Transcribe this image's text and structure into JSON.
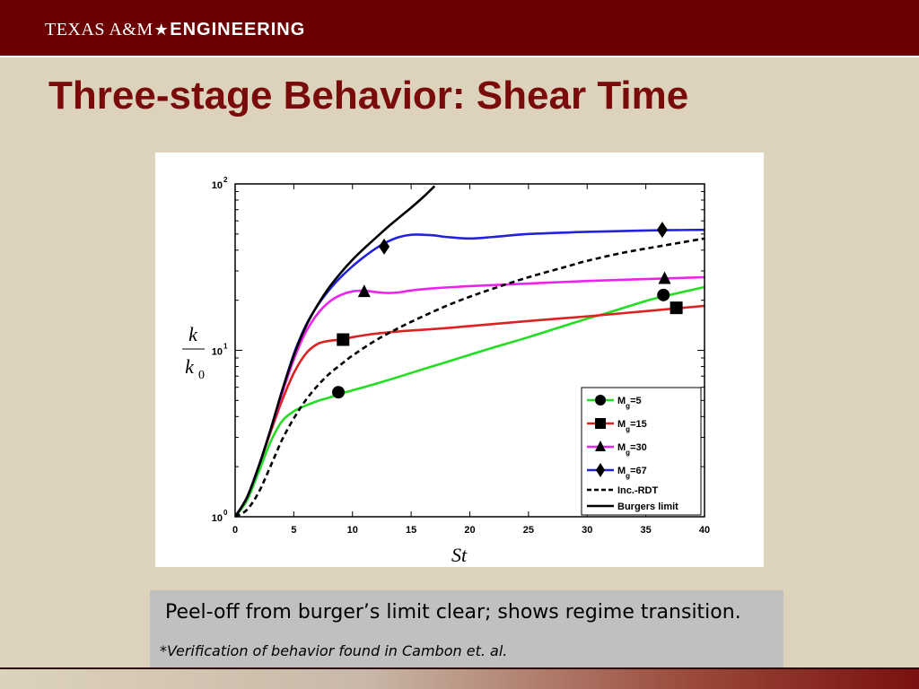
{
  "header": {
    "brand_part1": "TEXAS A&M",
    "brand_part2": "ENGINEERING",
    "star": "★"
  },
  "slide": {
    "title": "Three-stage Behavior: Shear Time"
  },
  "note": {
    "main": "Peel-off from burger’s limit clear; shows regime transition.",
    "foot_star": "*",
    "foot_text": "Verification of behavior found in Cambon et. al."
  },
  "colors": {
    "header_bg": "#6b0000",
    "title": "#7a0b0b",
    "slide_bg": "#ddd3bd",
    "note_bg": "#c0c0c0"
  },
  "chart_data": {
    "type": "line",
    "xlabel": "St",
    "ylabel_num": "k",
    "ylabel_den": "k",
    "ylabel_den_sub": "0",
    "xlim": [
      0,
      40
    ],
    "ylim": [
      1,
      100
    ],
    "yscale": "log",
    "x_ticks": [
      0,
      5,
      10,
      15,
      20,
      25,
      30,
      35,
      40
    ],
    "y_ticks": [
      {
        "value": 1,
        "base": "10",
        "exp": "0"
      },
      {
        "value": 10,
        "base": "10",
        "exp": "1"
      },
      {
        "value": 100,
        "base": "10",
        "exp": "2"
      }
    ],
    "legend_position": "bottom-right",
    "series": [
      {
        "name": "M",
        "sub": "g",
        "suffix": "=5",
        "color": "#22dd22",
        "dash": "solid",
        "marker": "circle",
        "x": [
          0,
          1,
          2,
          3,
          4,
          5,
          6,
          7,
          8,
          9,
          10,
          12,
          14,
          16,
          18,
          20,
          22,
          25,
          28,
          30,
          32,
          35,
          37,
          40
        ],
        "y": [
          1.0,
          1.25,
          1.85,
          2.8,
          3.75,
          4.3,
          4.65,
          4.95,
          5.2,
          5.5,
          5.75,
          6.3,
          6.95,
          7.7,
          8.5,
          9.4,
          10.4,
          12.0,
          14.0,
          15.5,
          17.0,
          19.8,
          21.5,
          24.0
        ],
        "markers_x": [
          8.8,
          36.5
        ],
        "markers_y": [
          5.6,
          21.5
        ]
      },
      {
        "name": "M",
        "sub": "g",
        "suffix": "=15",
        "color": "#dd2222",
        "dash": "solid",
        "marker": "square",
        "x": [
          0,
          1,
          2,
          3,
          4,
          5,
          6,
          7,
          8,
          9,
          10,
          12,
          14,
          16,
          18,
          20,
          25,
          30,
          35,
          40
        ],
        "y": [
          1.0,
          1.3,
          2.0,
          3.2,
          5.0,
          7.3,
          9.5,
          10.9,
          11.4,
          11.6,
          12.0,
          12.6,
          13.0,
          13.3,
          13.6,
          14.0,
          15.0,
          16.0,
          17.2,
          18.5
        ],
        "markers_x": [
          9.2,
          37.6
        ],
        "markers_y": [
          11.6,
          18.0
        ]
      },
      {
        "name": "M",
        "sub": "g",
        "suffix": "=30",
        "color": "#ee22ee",
        "dash": "solid",
        "marker": "triangle",
        "x": [
          0,
          1,
          2,
          3,
          4,
          5,
          6,
          7,
          8,
          9,
          10,
          11,
          12,
          13,
          14,
          15,
          17,
          20,
          25,
          30,
          35,
          40
        ],
        "y": [
          1.0,
          1.3,
          2.0,
          3.3,
          5.5,
          8.8,
          12.8,
          16.5,
          19.5,
          21.5,
          22.6,
          22.8,
          22.4,
          22.1,
          22.3,
          22.9,
          23.6,
          24.3,
          25.2,
          26.1,
          26.8,
          27.5
        ],
        "markers_x": [
          11.0,
          36.6
        ],
        "markers_y": [
          22.5,
          27.0
        ]
      },
      {
        "name": "M",
        "sub": "g",
        "suffix": "=67",
        "color": "#2222dd",
        "dash": "solid",
        "marker": "diamond",
        "x": [
          0,
          1,
          2,
          3,
          4,
          5,
          6,
          7,
          8,
          9,
          10,
          11,
          12,
          13,
          14,
          15,
          16,
          17,
          18,
          20,
          22,
          25,
          30,
          35,
          40
        ],
        "y": [
          1.0,
          1.3,
          2.0,
          3.3,
          5.7,
          9.5,
          14.0,
          18.5,
          23.0,
          27.5,
          32.0,
          36.5,
          41.0,
          45.0,
          48.0,
          49.5,
          49.5,
          49.0,
          48.0,
          47.0,
          48.0,
          50.0,
          51.5,
          52.5,
          53.0
        ],
        "markers_x": [
          12.7,
          36.4
        ],
        "markers_y": [
          42.0,
          53.0
        ]
      },
      {
        "name": "Inc.-RDT",
        "color": "#000000",
        "dash": "dashed",
        "marker": "none",
        "x": [
          0,
          1,
          2,
          3,
          4,
          5,
          6,
          7,
          8,
          9,
          10,
          12,
          14,
          16,
          18,
          20,
          22,
          25,
          28,
          30,
          33,
          36,
          40
        ],
        "y": [
          1.0,
          1.1,
          1.4,
          2.0,
          2.9,
          3.9,
          5.0,
          6.1,
          7.2,
          8.2,
          9.3,
          11.5,
          13.7,
          16.0,
          18.5,
          21.0,
          23.5,
          27.5,
          31.5,
          34.5,
          38.5,
          42.0,
          47.0
        ]
      },
      {
        "name": "Burgers limit",
        "color": "#000000",
        "dash": "solid",
        "marker": "none",
        "x": [
          0,
          1,
          2,
          3,
          4,
          5,
          6,
          7,
          8,
          9,
          10,
          11,
          12,
          13,
          14,
          15,
          16,
          17
        ],
        "y": [
          1.0,
          1.3,
          2.0,
          3.3,
          5.7,
          9.3,
          13.8,
          18.6,
          23.8,
          29.2,
          35.0,
          41.0,
          47.5,
          55.0,
          63.0,
          72.0,
          83.0,
          97.0
        ]
      }
    ]
  }
}
